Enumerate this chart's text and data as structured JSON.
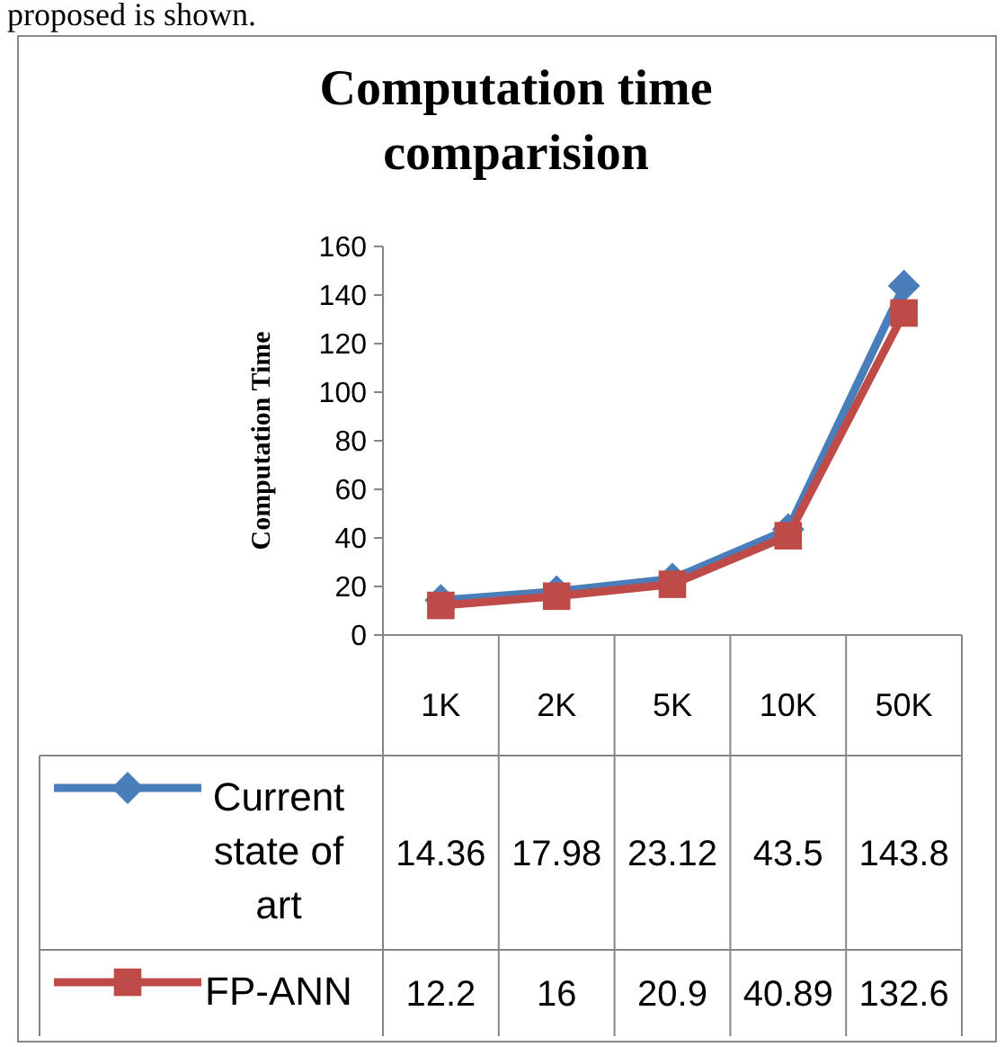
{
  "chart_data": {
    "type": "line",
    "title": "Computation time comparision",
    "ylabel": "Computation Time",
    "annotations": [
      "proposed is shown."
    ],
    "categories": [
      "1K",
      "2K",
      "5K",
      "10K",
      "50K"
    ],
    "series": [
      {
        "name": "Current state of art",
        "color": "#4a7ebb",
        "marker": "diamond",
        "values": [
          14.36,
          17.98,
          23.12,
          43.5,
          143.8
        ]
      },
      {
        "name": "FP-ANN",
        "color": "#be4b48",
        "marker": "square",
        "values": [
          12.2,
          16,
          20.9,
          40.89,
          132.6
        ]
      }
    ],
    "ylim": [
      0,
      160
    ],
    "yticks": [
      0,
      20,
      40,
      60,
      80,
      100,
      120,
      140,
      160
    ],
    "grid": false,
    "legend": "bottom",
    "data_labels": true
  }
}
